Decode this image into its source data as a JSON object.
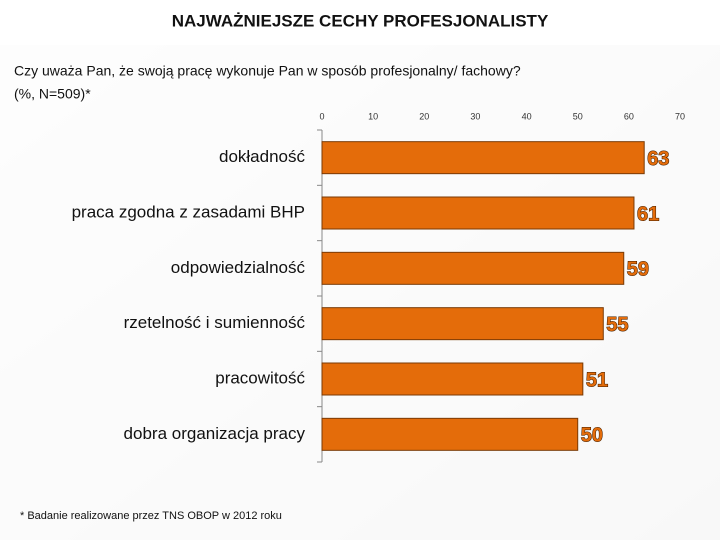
{
  "chart_data": {
    "type": "bar",
    "orientation": "horizontal",
    "title": "NAJWAŻNIEJSZE CECHY PROFESJONALISTY",
    "subtitle": [
      "Czy uważa Pan, że swoją pracę wykonuje Pan w sposób profesjonalny/ fachowy?",
      "(%, N=509)*"
    ],
    "categories": [
      "dokładność",
      "praca zgodna z zasadami BHP",
      "odpowiedzialność",
      "rzetelność i sumienność",
      "pracowitość",
      "dobra organizacja pracy"
    ],
    "values": [
      63,
      61,
      59,
      55,
      51,
      50
    ],
    "color": "#e46c0a",
    "xlim": [
      0,
      70
    ],
    "xticks": [
      0,
      10,
      20,
      30,
      40,
      50,
      60,
      70
    ],
    "grid": false,
    "footnote": "* Badanie realizowane przez TNS OBOP w 2012 roku"
  }
}
